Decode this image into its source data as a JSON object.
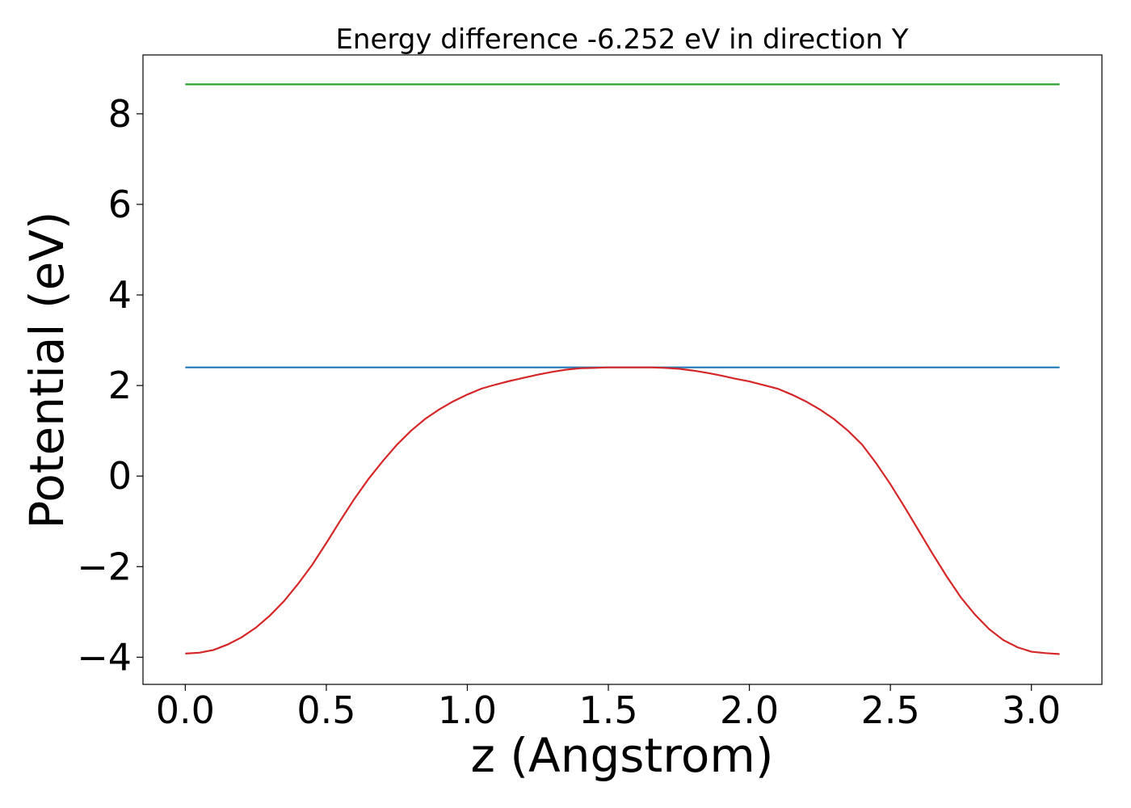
{
  "chart_data": {
    "type": "line",
    "title": "Energy difference -6.252 eV in direction Y",
    "xlabel": "z (Angstrom)",
    "ylabel": "Potential (eV)",
    "xlim": [
      -0.15,
      3.25
    ],
    "ylim": [
      -4.6,
      9.3
    ],
    "xticks": [
      0.0,
      0.5,
      1.0,
      1.5,
      2.0,
      2.5,
      3.0
    ],
    "xtick_labels": [
      "0.0",
      "0.5",
      "1.0",
      "1.5",
      "2.0",
      "2.5",
      "3.0"
    ],
    "yticks": [
      -4,
      -2,
      0,
      2,
      4,
      6,
      8
    ],
    "ytick_labels": [
      "−4",
      "−2",
      "0",
      "2",
      "4",
      "6",
      "8"
    ],
    "grid": false,
    "series": [
      {
        "color": "#2ca02c",
        "x": [
          0.0,
          3.1
        ],
        "y": [
          8.65,
          8.65
        ]
      },
      {
        "color": "#1f77b4",
        "x": [
          0.0,
          3.1
        ],
        "y": [
          2.4,
          2.4
        ]
      },
      {
        "color": "#d62728",
        "x": [
          0.0,
          0.05,
          0.1,
          0.15,
          0.2,
          0.25,
          0.3,
          0.35,
          0.4,
          0.45,
          0.5,
          0.55,
          0.6,
          0.65,
          0.7,
          0.75,
          0.8,
          0.85,
          0.9,
          0.95,
          1.0,
          1.05,
          1.1,
          1.15,
          1.2,
          1.25,
          1.3,
          1.35,
          1.4,
          1.45,
          1.5,
          1.55,
          1.6,
          1.65,
          1.7,
          1.75,
          1.8,
          1.85,
          1.9,
          1.95,
          2.0,
          2.05,
          2.1,
          2.15,
          2.2,
          2.25,
          2.3,
          2.35,
          2.4,
          2.45,
          2.5,
          2.55,
          2.6,
          2.65,
          2.7,
          2.75,
          2.8,
          2.85,
          2.9,
          2.95,
          3.0,
          3.05,
          3.1
        ],
        "y": [
          -3.92,
          -3.9,
          -3.84,
          -3.72,
          -3.56,
          -3.35,
          -3.08,
          -2.76,
          -2.38,
          -1.96,
          -1.48,
          -0.98,
          -0.5,
          -0.06,
          0.33,
          0.69,
          1.0,
          1.26,
          1.47,
          1.65,
          1.8,
          1.93,
          2.02,
          2.1,
          2.17,
          2.24,
          2.3,
          2.35,
          2.38,
          2.39,
          2.4,
          2.4,
          2.4,
          2.4,
          2.39,
          2.37,
          2.33,
          2.28,
          2.22,
          2.15,
          2.09,
          2.01,
          1.93,
          1.8,
          1.65,
          1.47,
          1.26,
          1.0,
          0.69,
          0.28,
          -0.18,
          -0.68,
          -1.2,
          -1.72,
          -2.22,
          -2.68,
          -3.06,
          -3.38,
          -3.62,
          -3.78,
          -3.88,
          -3.91,
          -3.93
        ]
      }
    ]
  }
}
